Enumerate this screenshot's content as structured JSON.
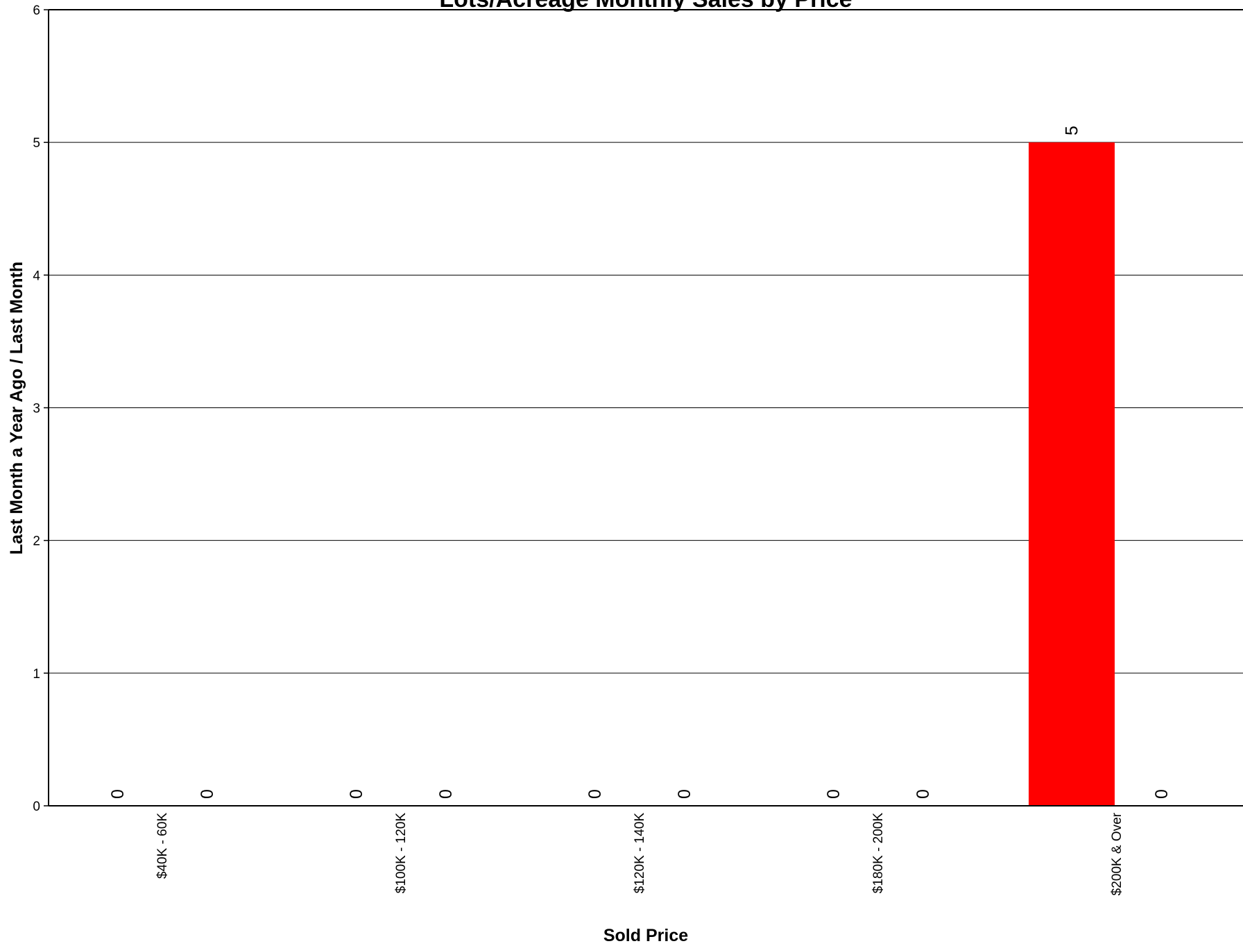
{
  "chart_data": {
    "type": "bar",
    "title": "Lots/Acreage Monthly Sales by Price",
    "xlabel": "Sold Price",
    "ylabel": "Last Month a Year Ago / Last Month",
    "categories": [
      "$40K - 60K",
      "$100K - 120K",
      "$120K - 140K",
      "$180K - 200K",
      "$200K & Over"
    ],
    "series": [
      {
        "values": [
          0,
          0,
          0,
          0,
          5
        ],
        "color": "#ff0000"
      },
      {
        "values": [
          0,
          0,
          0,
          0,
          0
        ],
        "color": "#0000ff"
      }
    ],
    "ylim": [
      0,
      6
    ],
    "yticks": [
      0,
      1,
      2,
      3,
      4,
      5,
      6
    ],
    "grid": true,
    "legend": "none"
  }
}
